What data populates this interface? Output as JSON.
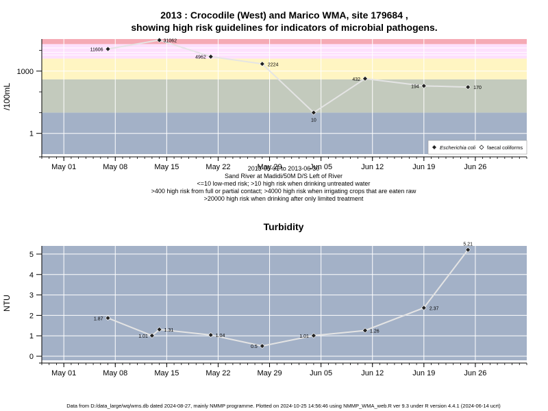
{
  "title_line1": "2013 : Crocodile (West) and Marico WMA, site 179684 ,",
  "title_line2": "showing high risk guidelines for indicators of microbial pathogens.",
  "chart_data": [
    {
      "type": "line",
      "ylabel": "/100mL",
      "yscale": "log",
      "ylim": [
        0.1,
        35000
      ],
      "yticks": [
        {
          "value": 1,
          "label": "1"
        },
        {
          "value": 1000,
          "label": "1000"
        }
      ],
      "xticks": [
        {
          "date": "2013-05-01",
          "label": "May 01"
        },
        {
          "date": "2013-05-08",
          "label": "May 08"
        },
        {
          "date": "2013-05-15",
          "label": "May 15"
        },
        {
          "date": "2013-05-22",
          "label": "May 22"
        },
        {
          "date": "2013-05-29",
          "label": "May 29"
        },
        {
          "date": "2013-06-05",
          "label": "Jun 05"
        },
        {
          "date": "2013-06-12",
          "label": "Jun 12"
        },
        {
          "date": "2013-06-19",
          "label": "Jun 19"
        },
        {
          "date": "2013-06-26",
          "label": "Jun 26"
        }
      ],
      "xlim": [
        "2013-04-28",
        "2013-07-03"
      ],
      "bands": [
        {
          "from": 0.1,
          "to": 10,
          "color": "#a3b1c7"
        },
        {
          "from": 10,
          "to": 400,
          "color": "#c3cabd"
        },
        {
          "from": 400,
          "to": 4000,
          "color": "#fff5c2"
        },
        {
          "from": 4000,
          "to": 20000,
          "color": "#fde0fd"
        },
        {
          "from": 20000,
          "to": 35000,
          "color": "#f5aab5"
        }
      ],
      "series": [
        {
          "name": "Escherichia coli",
          "marker": "diamond-filled",
          "points": [
            {
              "x": "2013-05-07",
              "y": 11606,
              "label": "11606"
            },
            {
              "x": "2013-05-14",
              "y": 31062,
              "label": "31062"
            },
            {
              "x": "2013-05-21",
              "y": 4962,
              "label": "4962"
            },
            {
              "x": "2013-05-28",
              "y": 2224,
              "label": "2224"
            },
            {
              "x": "2013-06-04",
              "y": 10,
              "label": "10"
            },
            {
              "x": "2013-06-11",
              "y": 432,
              "label": "432"
            },
            {
              "x": "2013-06-19",
              "y": 194,
              "label": "194"
            },
            {
              "x": "2013-06-25",
              "y": 170,
              "label": "170"
            }
          ]
        },
        {
          "name": "faecal coliforms",
          "marker": "diamond-open",
          "points": []
        }
      ],
      "legend_position": "bottom-right",
      "grid": true,
      "xlabel_lines": [
        "2013-05-01 to 2013-06-30",
        "Sand River at Madidi/50M D/S Left of River",
        "<=10 low-med risk; >10 high risk when drinking untreated water",
        ">400 high risk from full or partial contact; >4000 high risk when irrigating crops that are eaten raw",
        ">20000 high risk when drinking after only limited treatment"
      ]
    },
    {
      "type": "line",
      "title": "Turbidity",
      "ylabel": "NTU",
      "ylim": [
        -0.2,
        5.4
      ],
      "yticks": [
        {
          "value": 0,
          "label": "0"
        },
        {
          "value": 1,
          "label": "1"
        },
        {
          "value": 2,
          "label": "2"
        },
        {
          "value": 3,
          "label": "3"
        },
        {
          "value": 4,
          "label": "4"
        },
        {
          "value": 5,
          "label": "5"
        }
      ],
      "xticks": [
        {
          "date": "2013-05-01",
          "label": "May 01"
        },
        {
          "date": "2013-05-08",
          "label": "May 08"
        },
        {
          "date": "2013-05-15",
          "label": "May 15"
        },
        {
          "date": "2013-05-22",
          "label": "May 22"
        },
        {
          "date": "2013-05-29",
          "label": "May 29"
        },
        {
          "date": "2013-06-05",
          "label": "Jun 05"
        },
        {
          "date": "2013-06-12",
          "label": "Jun 12"
        },
        {
          "date": "2013-06-19",
          "label": "Jun 19"
        },
        {
          "date": "2013-06-26",
          "label": "Jun 26"
        }
      ],
      "xlim": [
        "2013-04-28",
        "2013-07-03"
      ],
      "background": "#a3b1c7",
      "series": [
        {
          "points": [
            {
              "x": "2013-05-07",
              "y": 1.87,
              "label": "1.87"
            },
            {
              "x": "2013-05-13",
              "y": 1.01,
              "label": "1.01"
            },
            {
              "x": "2013-05-14",
              "y": 1.31,
              "label": "1.31"
            },
            {
              "x": "2013-05-21",
              "y": 1.04,
              "label": "1.04"
            },
            {
              "x": "2013-05-28",
              "y": 0.5,
              "label": "0.5"
            },
            {
              "x": "2013-06-04",
              "y": 1.01,
              "label": "1.01"
            },
            {
              "x": "2013-06-11",
              "y": 1.26,
              "label": "1.26"
            },
            {
              "x": "2013-06-19",
              "y": 2.37,
              "label": "2.37"
            },
            {
              "x": "2013-06-25",
              "y": 5.21,
              "label": "5.21"
            }
          ]
        }
      ],
      "grid": true
    }
  ],
  "footer": "Data from D:/data_large/wq/wms.db dated 2024-08-27, mainly NMMP programme. Plotted on 2024-10-25 14:56:46 using NMMP_WMA_web.R ver 9.3 under R version 4.4.1 (2024-06-14 ucrt)"
}
